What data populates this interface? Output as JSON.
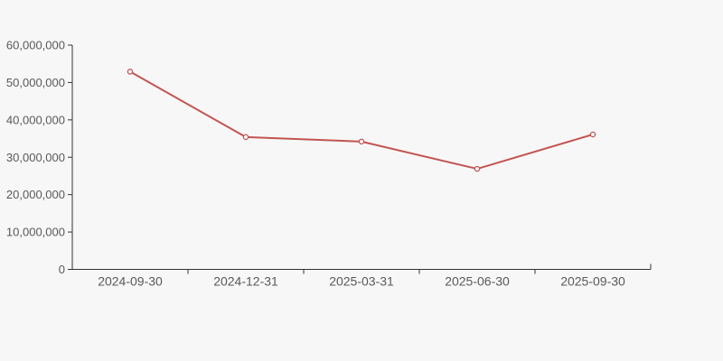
{
  "page": {
    "background_color": "#f7f7f7"
  },
  "chart_data": {
    "type": "line",
    "title": "",
    "xlabel": "",
    "ylabel": "",
    "categories": [
      "2024-09-30",
      "2024-12-31",
      "2025-03-31",
      "2025-06-30",
      "2025-09-30"
    ],
    "series": [
      {
        "name": "value",
        "values": [
          52900000,
          35400000,
          34200000,
          26900000,
          36100000
        ],
        "color": "#c25552",
        "marker": "open-circle",
        "marker_fill": "#ffffff",
        "line_width": 2
      }
    ],
    "ylim": [
      0,
      60000000
    ],
    "y_tick_interval": 10000000,
    "y_tick_labels": [
      "0",
      "10,000,000",
      "20,000,000",
      "30,000,000",
      "40,000,000",
      "50,000,000",
      "60,000,000"
    ],
    "grid": false,
    "legend": false,
    "axis_color": "#333333",
    "label_color": "#595959"
  }
}
